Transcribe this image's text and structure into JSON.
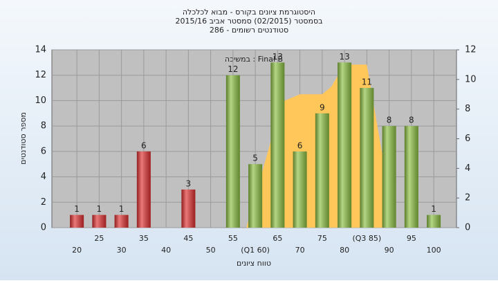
{
  "chart_data": {
    "type": "bar",
    "title": "היסטוגרמת ציונים בקורס - מבוא לכלכלה",
    "subtitle": "בסמסטר  (02/2015)  סמסטר אביב 2015/16",
    "subtitle2": "סטודנטים רשומים - 286",
    "annotation": "במשיכה : Final B",
    "x_label": "טווח ציונים",
    "y_label": "מספר סטודנטים",
    "x": [
      20,
      25,
      30,
      35,
      40,
      45,
      50,
      55,
      60,
      65,
      70,
      75,
      80,
      85,
      90,
      95,
      100
    ],
    "xlim": [
      14.4,
      105.1
    ],
    "xticks": [
      20,
      25,
      30,
      35,
      40,
      45,
      50,
      55,
      {
        "value": 60,
        "label": "(Q1 60)"
      },
      65,
      70,
      75,
      80,
      {
        "value": 85,
        "label": "(Q3 85)"
      },
      90,
      95,
      100
    ],
    "ylim": [
      0,
      14
    ],
    "yticks": [
      0,
      2,
      4,
      6,
      8,
      10,
      12,
      14
    ],
    "y2lim": [
      0,
      12
    ],
    "y2ticks": [
      0,
      2,
      4,
      6,
      8,
      10,
      12
    ],
    "grid": true,
    "series": [
      {
        "values": [
          1,
          1,
          1,
          6,
          0,
          3,
          0,
          12,
          5,
          13,
          6,
          9,
          13,
          11,
          8,
          8,
          1
        ],
        "colors": [
          "#e03030",
          "#e03030",
          "#e03030",
          "#e03030",
          "#e03030",
          "#e03030",
          "#e03030",
          "#8cc043",
          "#8cc043",
          "#8cc043",
          "#8cc043",
          "#8cc043",
          "#8cc043",
          "#8cc043",
          "#8cc043",
          "#8cc043",
          "#8cc043"
        ]
      },
      {
        "type": "area",
        "axis": "y2",
        "color": "#ffc65a",
        "x": [
          58,
          66,
          70,
          75,
          77,
          80,
          85,
          89
        ],
        "values": [
          0,
          8.5,
          9,
          9,
          9.5,
          11,
          11,
          4
        ]
      }
    ]
  }
}
